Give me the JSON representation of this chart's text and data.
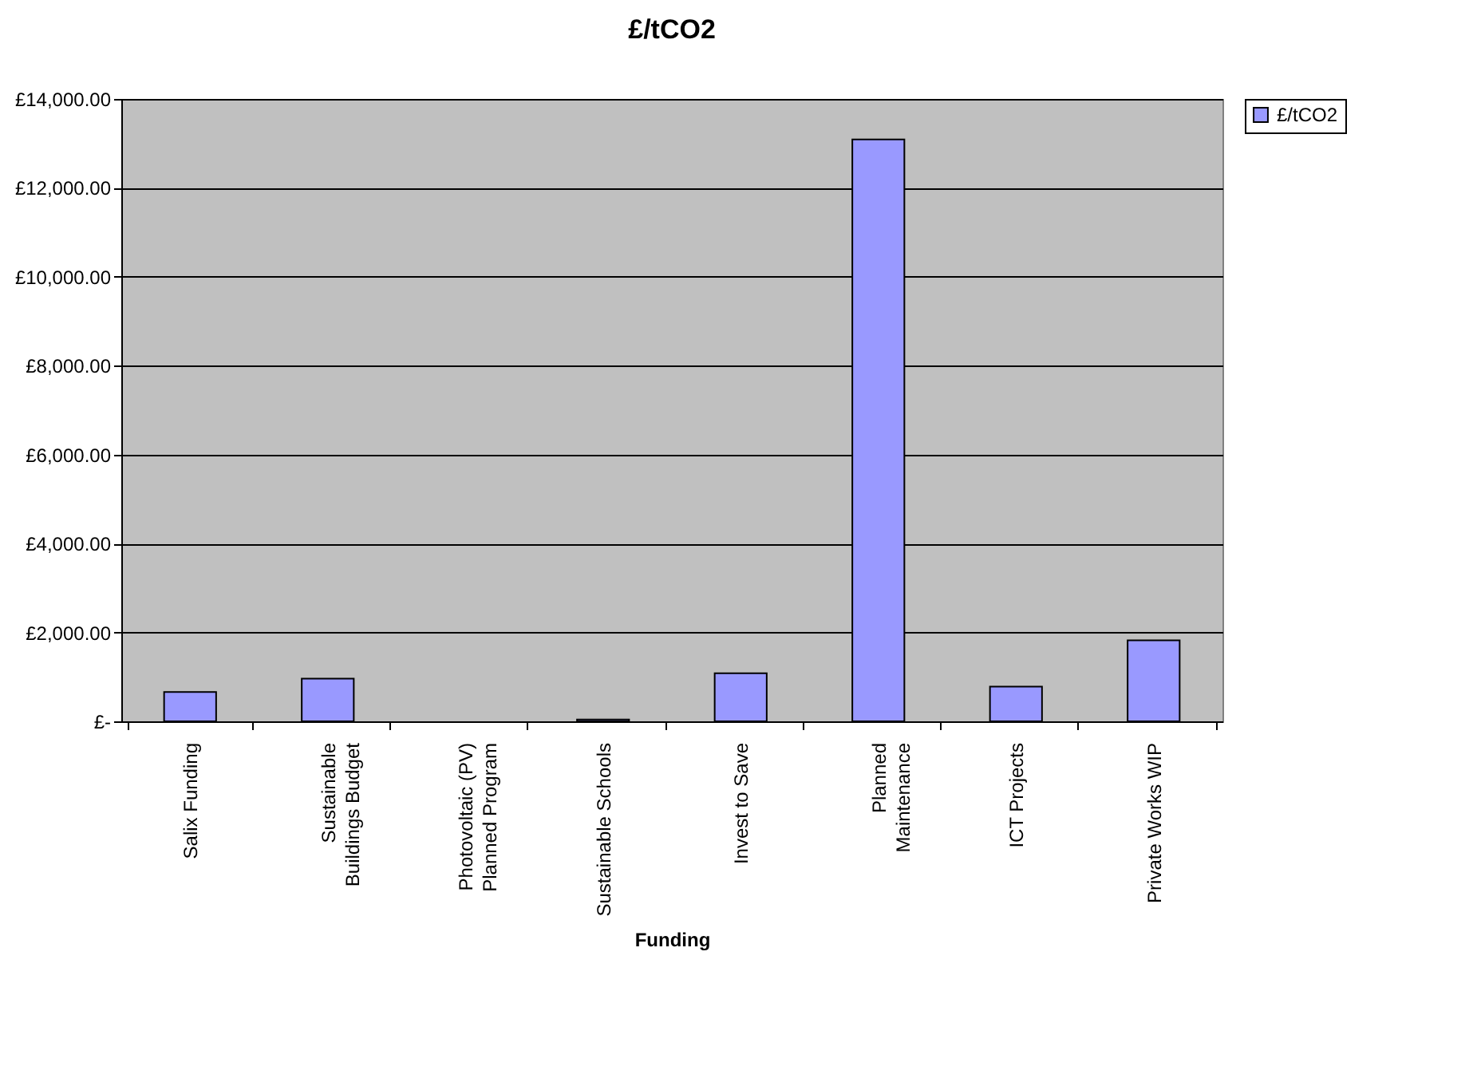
{
  "chart_data": {
    "type": "bar",
    "title": "£/tCO2",
    "xlabel": "Funding",
    "categories": [
      "Salix Funding",
      "Sustainable\nBuildings Budget",
      "Photovoltaic (PV)\nPlanned Program",
      "Sustainable Schools",
      "Invest to Save",
      "Planned\nMaintenance",
      "ICT Projects",
      "Private Works WIP"
    ],
    "series": [
      {
        "name": "£/tCO2",
        "color": "#9999ff",
        "values": [
          660,
          960,
          0,
          40,
          1080,
          13090,
          780,
          1820
        ]
      }
    ],
    "ylim": [
      0,
      14000
    ],
    "yticks": [
      {
        "value": 0,
        "label": "£-"
      },
      {
        "value": 2000,
        "label": "£2,000.00"
      },
      {
        "value": 4000,
        "label": "£4,000.00"
      },
      {
        "value": 6000,
        "label": "£6,000.00"
      },
      {
        "value": 8000,
        "label": "£8,000.00"
      },
      {
        "value": 10000,
        "label": "£10,000.00"
      },
      {
        "value": 12000,
        "label": "£12,000.00"
      },
      {
        "value": 14000,
        "label": "£14,000.00"
      }
    ],
    "grid": "y",
    "legend": "right"
  }
}
